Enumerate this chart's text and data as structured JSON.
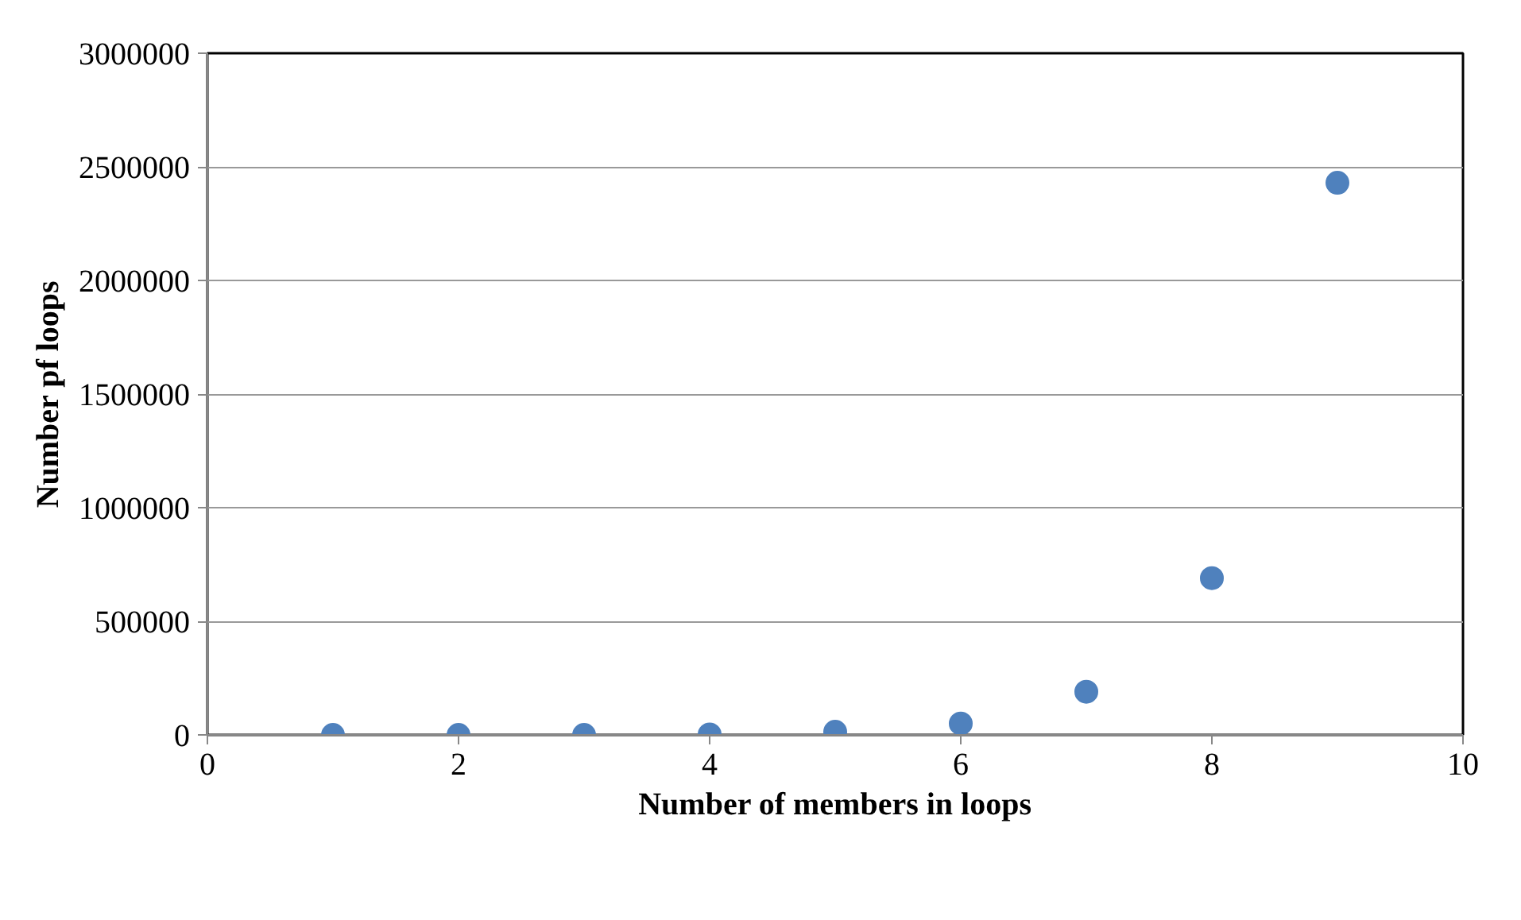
{
  "chart_data": {
    "type": "scatter",
    "xlabel": "Number of members in loops",
    "ylabel": "Number pf loops",
    "x": [
      1,
      2,
      3,
      4,
      5,
      6,
      7,
      8,
      9
    ],
    "series": [
      {
        "color": "#4f81bd",
        "values": [
          0,
          0,
          0,
          2000,
          14000,
          50000,
          190000,
          690000,
          2430000
        ]
      }
    ],
    "xlim": [
      0,
      10
    ],
    "xticks": [
      0,
      2,
      4,
      6,
      8,
      10
    ],
    "ylim": [
      0,
      3000000
    ],
    "yticks": [
      0,
      500000,
      1000000,
      1500000,
      2000000,
      2500000,
      3000000
    ],
    "grid": "y",
    "marker": "circle"
  }
}
